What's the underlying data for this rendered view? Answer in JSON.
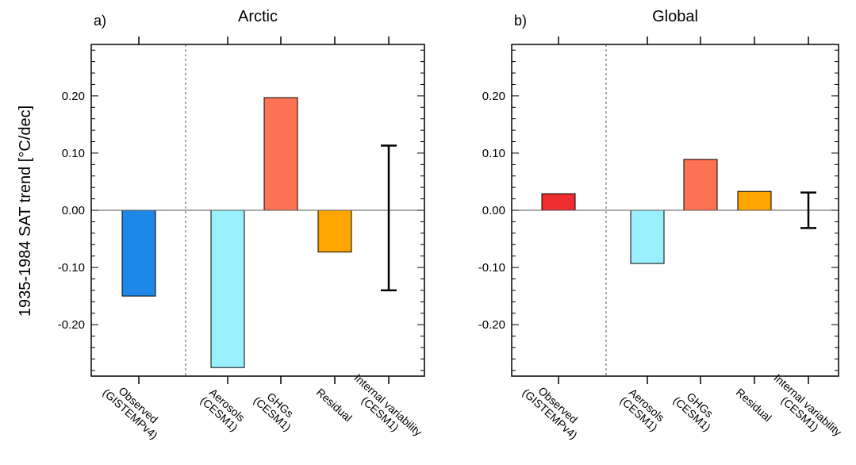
{
  "figure": {
    "ylabel": "1935-1984 SAT trend [°C/dec]"
  },
  "chart_data": [
    {
      "type": "bar",
      "panel_label": "a)",
      "title": "Arctic",
      "ylim": [
        -0.29,
        0.29
      ],
      "yticks": [
        -0.2,
        -0.1,
        0.0,
        0.1,
        0.2
      ],
      "ytick_labels": [
        "-0.20",
        "-0.10",
        "0.00",
        "0.10",
        "0.20"
      ],
      "categories": [
        [
          "Observed",
          "(GISTEMPv4)"
        ],
        [
          "Aerosols",
          "(CESM1)"
        ],
        [
          "GHGs",
          "(CESM1)"
        ],
        [
          "Residual"
        ],
        [
          "Internal variability",
          "(CESM1)"
        ]
      ],
      "bars": [
        {
          "category": 0,
          "value": -0.15,
          "color": "#1e88e8"
        },
        {
          "category": 1,
          "value": -0.275,
          "color": "#99f0fc"
        },
        {
          "category": 2,
          "value": 0.197,
          "color": "#ff7355"
        },
        {
          "category": 3,
          "value": -0.073,
          "color": "#ffa500"
        }
      ],
      "error_range": {
        "category": 4,
        "low": -0.14,
        "high": 0.113
      },
      "separator_after_category": 0,
      "zero_line": true
    },
    {
      "type": "bar",
      "panel_label": "b)",
      "title": "Global",
      "ylim": [
        -0.29,
        0.29
      ],
      "yticks": [
        -0.2,
        -0.1,
        0.0,
        0.1,
        0.2
      ],
      "ytick_labels": [
        "-0.20",
        "-0.10",
        "0.00",
        "0.10",
        "0.20"
      ],
      "categories": [
        [
          "Observed",
          "(GISTEMPv4)"
        ],
        [
          "Aerosols",
          "(CESM1)"
        ],
        [
          "GHGs",
          "(CESM1)"
        ],
        [
          "Residual"
        ],
        [
          "Internal variability",
          "(CESM1)"
        ]
      ],
      "bars": [
        {
          "category": 0,
          "value": 0.029,
          "color": "#ee2e2e"
        },
        {
          "category": 1,
          "value": -0.093,
          "color": "#99f0fc"
        },
        {
          "category": 2,
          "value": 0.089,
          "color": "#ff7355"
        },
        {
          "category": 3,
          "value": 0.033,
          "color": "#ffa500"
        }
      ],
      "error_range": {
        "category": 4,
        "low": -0.031,
        "high": 0.031
      },
      "separator_after_category": 0,
      "zero_line": true
    }
  ]
}
